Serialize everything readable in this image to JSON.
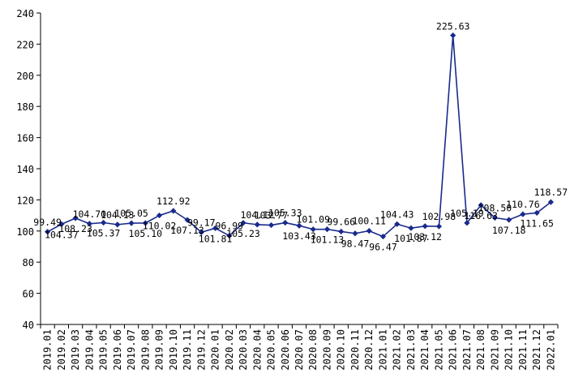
{
  "chart_data": {
    "type": "line",
    "title": "",
    "xlabel": "",
    "ylabel": "",
    "ylim": [
      40,
      240
    ],
    "yticks": [
      40,
      60,
      80,
      100,
      120,
      140,
      160,
      180,
      200,
      220,
      240
    ],
    "grid": false,
    "legend": "none",
    "colors": {
      "line": "#1a2a8c",
      "marker": "#1a2a8c",
      "axis": "#000000"
    },
    "categories": [
      "2019.01",
      "2019.02",
      "2019.03",
      "2019.04",
      "2019.05",
      "2019.06",
      "2019.07",
      "2019.08",
      "2019.09",
      "2019.10",
      "2019.11",
      "2019.12",
      "2020.01",
      "2020.02",
      "2020.03",
      "2020.04",
      "2020.05",
      "2020.06",
      "2020.07",
      "2020.08",
      "2020.09",
      "2020.10",
      "2020.11",
      "2020.12",
      "2021.01",
      "2021.02",
      "2021.03",
      "2021.04",
      "2021.05",
      "2021.06",
      "2021.07",
      "2021.08",
      "2021.09",
      "2021.10",
      "2021.11",
      "2021.12",
      "2022.01"
    ],
    "series": [
      {
        "values": [
          99.49,
          104.37,
          108.23,
          104.7,
          105.37,
          104.13,
          105.05,
          105.1,
          110.02,
          112.92,
          107.13,
          99.17,
          101.81,
          96.99,
          105.23,
          104.12,
          103.77,
          105.33,
          103.43,
          101.09,
          101.13,
          99.66,
          98.47,
          100.11,
          96.47,
          104.43,
          101.87,
          103.12,
          102.98,
          225.63,
          105.19,
          116.63,
          108.5,
          107.18,
          110.76,
          111.65,
          118.57
        ],
        "labels": [
          "99.49",
          "104.37",
          "108.23",
          "104.70",
          "105.37",
          "104.13",
          "105.05",
          "105.10",
          "110.02",
          "112.92",
          "107.13",
          "99.17",
          "101.81",
          "96.99",
          "105.23",
          "104.12",
          "103.77",
          "105.33",
          "103.43",
          "101.09",
          "101.13",
          "99.66",
          "98.47",
          "100.11",
          "96.47",
          "104.43",
          "101.87",
          "103.12",
          "102.98",
          "225.63",
          "105.19",
          "116.63",
          "108.50",
          "107.18",
          "110.76",
          "111.65",
          "118.57"
        ]
      }
    ]
  }
}
